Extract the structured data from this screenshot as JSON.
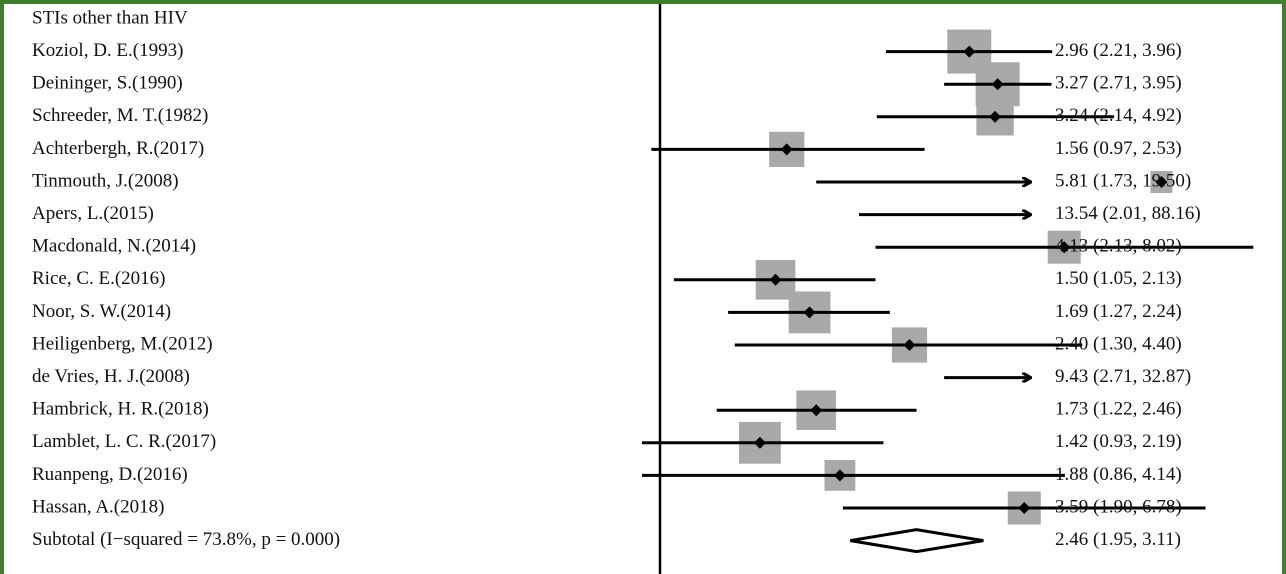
{
  "chart_data": {
    "type": "forest",
    "section_title": "STIs other than HIV",
    "scale": "log",
    "null_value": 1,
    "clip_upper": 11.5,
    "studies": [
      {
        "label": "Koziol, D. E.(1993)",
        "estimate": 2.96,
        "lower": 2.21,
        "upper": 3.96,
        "ci_text": "2.96 (2.21, 3.96)",
        "weight": 1.0
      },
      {
        "label": "Deininger, S.(1990)",
        "estimate": 3.27,
        "lower": 2.71,
        "upper": 3.95,
        "ci_text": "3.27 (2.71, 3.95)",
        "weight": 1.0
      },
      {
        "label": "Schreeder, M. T.(1982)",
        "estimate": 3.24,
        "lower": 2.14,
        "upper": 4.92,
        "ci_text": "3.24 (2.14, 4.92)",
        "weight": 0.85
      },
      {
        "label": "Achterbergh, R.(2017)",
        "estimate": 1.56,
        "lower": 0.97,
        "upper": 2.53,
        "ci_text": "1.56 (0.97, 2.53)",
        "weight": 0.8
      },
      {
        "label": "Tinmouth, J.(2008)",
        "estimate": 5.81,
        "lower": 1.73,
        "upper": 19.5,
        "ci_text": "5.81 (1.73, 19.50)",
        "weight": 0.5
      },
      {
        "label": "Apers, L.(2015)",
        "estimate": 13.54,
        "lower": 2.01,
        "upper": 88.16,
        "ci_text": "13.54 (2.01, 88.16)",
        "weight": 0.4
      },
      {
        "label": "Macdonald, N.(2014)",
        "estimate": 4.13,
        "lower": 2.13,
        "upper": 8.02,
        "ci_text": "4.13 (2.13, 8.02)",
        "weight": 0.75
      },
      {
        "label": "Rice, C. E.(2016)",
        "estimate": 1.5,
        "lower": 1.05,
        "upper": 2.13,
        "ci_text": "1.50 (1.05, 2.13)",
        "weight": 0.9
      },
      {
        "label": "Noor, S. W.(2014)",
        "estimate": 1.69,
        "lower": 1.27,
        "upper": 2.24,
        "ci_text": "1.69 (1.27, 2.24)",
        "weight": 0.95
      },
      {
        "label": "Heiligenberg, M.(2012)",
        "estimate": 2.4,
        "lower": 1.3,
        "upper": 4.4,
        "ci_text": "2.40 (1.30, 4.40)",
        "weight": 0.8
      },
      {
        "label": "de Vries, H. J.(2008)",
        "estimate": 9.43,
        "lower": 2.71,
        "upper": 32.87,
        "ci_text": "9.43 (2.71, 32.87)",
        "weight": 0.5
      },
      {
        "label": "Hambrick, H. R.(2018)",
        "estimate": 1.73,
        "lower": 1.22,
        "upper": 2.46,
        "ci_text": "1.73 (1.22, 2.46)",
        "weight": 0.9
      },
      {
        "label": "Lamblet, L. C. R.(2017)",
        "estimate": 1.42,
        "lower": 0.93,
        "upper": 2.19,
        "ci_text": "1.42 (0.93, 2.19)",
        "weight": 0.95
      },
      {
        "label": "Ruanpeng, D.(2016)",
        "estimate": 1.88,
        "lower": 0.86,
        "upper": 4.14,
        "ci_text": "1.88 (0.86, 4.14)",
        "weight": 0.7
      },
      {
        "label": "Hassan, A.(2018)",
        "estimate": 3.59,
        "lower": 1.9,
        "upper": 6.78,
        "ci_text": "3.59 (1.90, 6.78)",
        "weight": 0.75
      }
    ],
    "subtotal": {
      "label": "Subtotal  (I−squared = 73.8%, p = 0.000)",
      "estimate": 2.46,
      "lower": 1.95,
      "upper": 3.11,
      "ci_text": "2.46 (1.95, 3.11)"
    },
    "colors": {
      "background_frame": "#3f7f2a",
      "weight_box": "#a9a9a9",
      "line": "#000000"
    }
  }
}
